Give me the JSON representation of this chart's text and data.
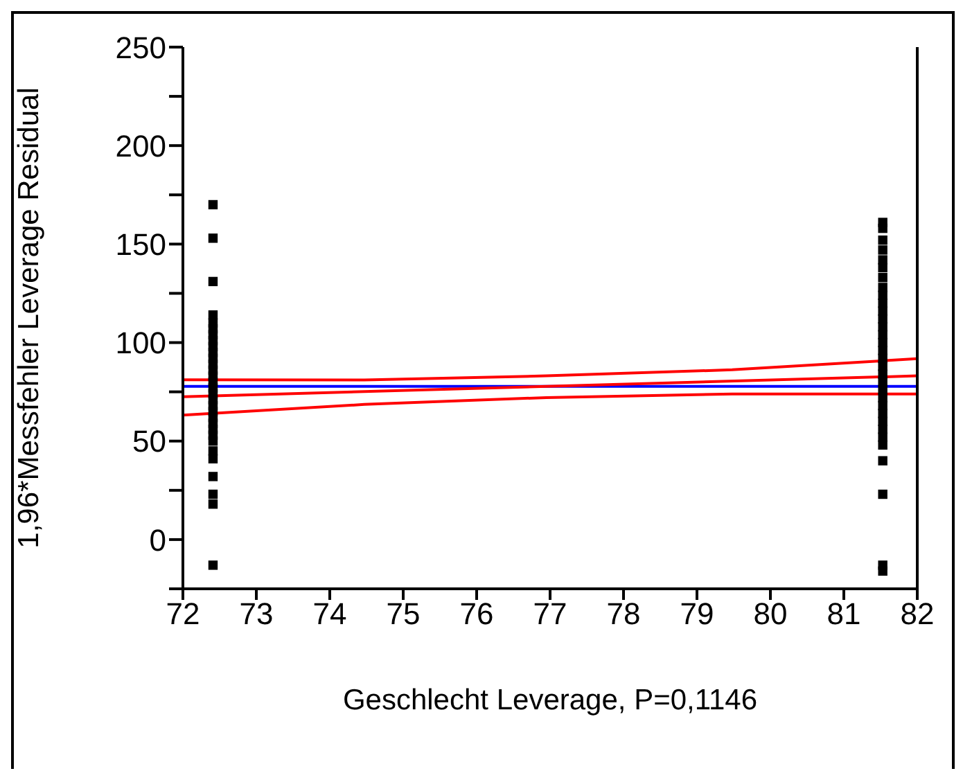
{
  "chart_data": {
    "type": "scatter",
    "xlabel": "Geschlecht Leverage, P=0,1146",
    "ylabel": "1,96*Messfehler Leverage Residual",
    "xlim": [
      72,
      82
    ],
    "xticks": [
      72,
      73,
      74,
      75,
      76,
      77,
      78,
      79,
      80,
      81,
      82
    ],
    "ylim": [
      -25,
      250
    ],
    "yticks": [
      {
        "value": -25,
        "label": null
      },
      0,
      {
        "value": 25,
        "label": null
      },
      50,
      {
        "value": 75,
        "label": null
      },
      100,
      {
        "value": 125,
        "label": null
      },
      150,
      {
        "value": 175,
        "label": null
      },
      200,
      {
        "value": 225,
        "label": null
      },
      250
    ],
    "grid": false,
    "legend": false,
    "ref_lines": [
      {
        "axis": "y",
        "value": 77.8,
        "color": "#0000ff",
        "line_style": "solid"
      }
    ],
    "series": [
      {
        "color": "#000000",
        "marker": "square",
        "x": [
          72.41,
          72.41,
          72.41,
          72.41,
          72.41,
          72.41,
          72.41,
          72.41,
          72.41,
          72.41,
          72.41,
          72.41,
          72.41,
          72.41,
          72.41,
          72.41,
          72.41,
          72.41,
          72.41,
          72.41,
          72.41,
          72.41,
          72.41,
          72.41,
          72.41,
          72.41,
          72.41,
          72.41,
          72.41,
          72.41,
          72.41
        ],
        "values": [
          170,
          153,
          131,
          114,
          110,
          107,
          104,
          101,
          98,
          95,
          92,
          89,
          86,
          83,
          80,
          77,
          74,
          71,
          68,
          65,
          62,
          59,
          56,
          53,
          50,
          45,
          41,
          32,
          23,
          18,
          -13
        ]
      },
      {
        "color": "#000000",
        "marker": "square",
        "x": [
          81.53,
          81.53,
          81.53,
          81.53,
          81.53,
          81.53,
          81.53,
          81.53,
          81.53,
          81.53,
          81.53,
          81.53,
          81.53,
          81.53,
          81.53,
          81.53,
          81.53,
          81.53,
          81.53,
          81.53,
          81.53,
          81.53,
          81.53,
          81.53,
          81.53,
          81.53,
          81.53,
          81.53,
          81.53,
          81.53,
          81.53,
          81.53
        ],
        "values": [
          161,
          158,
          152,
          147,
          142,
          138,
          133,
          128,
          124,
          120,
          116,
          112,
          108,
          104,
          100,
          96,
          92,
          88,
          84,
          80,
          76,
          72,
          68,
          64,
          60,
          56,
          52,
          48,
          40,
          23,
          -13,
          -16
        ]
      },
      {
        "type": "line",
        "color": "#ff0000",
        "marker": "none",
        "line_style": "solid",
        "x": [
          72,
          82
        ],
        "values": [
          72.5,
          83.1
        ]
      },
      {
        "type": "line",
        "color": "#ff0000",
        "marker": "none",
        "line_style": "solid",
        "x": [
          72,
          74.47,
          76.95,
          79.48,
          82
        ],
        "values": [
          81.1,
          81.0,
          83.1,
          86.2,
          91.8
        ]
      },
      {
        "type": "line",
        "color": "#ff0000",
        "marker": "none",
        "line_style": "solid",
        "x": [
          72,
          74.47,
          76.95,
          79.48,
          82
        ],
        "values": [
          63.2,
          68.6,
          72.1,
          73.9,
          73.9
        ]
      }
    ]
  }
}
